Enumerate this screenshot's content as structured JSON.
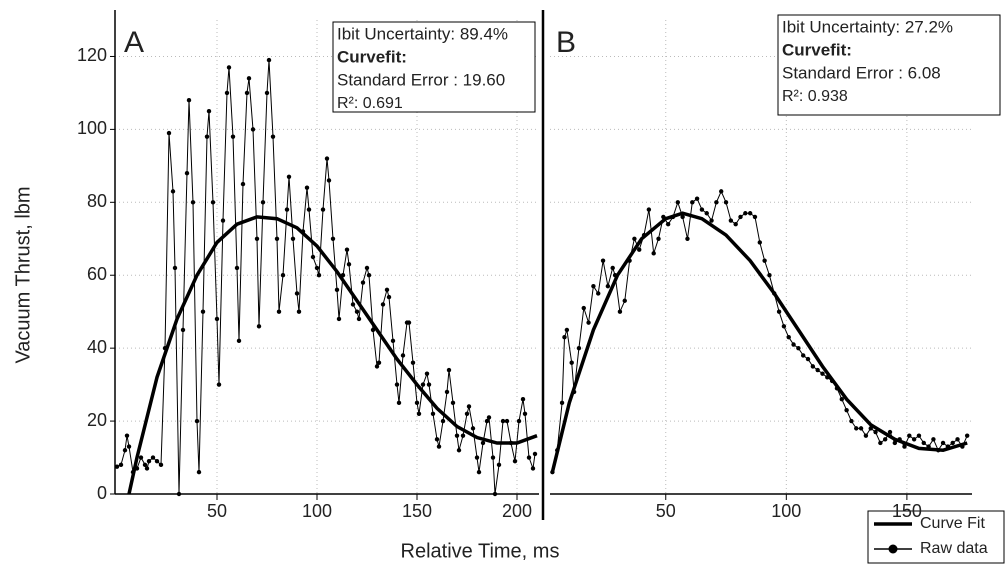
{
  "chart_data": [
    {
      "type": "line",
      "panel_label": "A",
      "y_label": "Vacuum Thrust, lbm",
      "x_label": "Relative Time, ms",
      "annotations": [
        "Ibit Uncertainty: 89.4%",
        "Curvefit:",
        "Standard Error : 19.60",
        "R²: 0.691"
      ],
      "xlim": [
        -1,
        211
      ],
      "xticks": [
        50,
        100,
        150,
        200
      ],
      "ylim": [
        0,
        130
      ],
      "yticks": [
        0,
        20,
        40,
        60,
        80,
        100,
        120
      ],
      "grid": true,
      "series": [
        {
          "color": "#000000",
          "marker": "circle",
          "x": [
            0,
            2,
            4,
            5,
            6,
            8,
            10,
            12,
            14,
            15,
            16,
            18,
            20,
            22,
            24,
            26,
            28,
            29,
            31,
            33,
            35,
            36,
            38,
            40,
            41,
            43,
            45,
            46,
            48,
            50,
            51,
            53,
            55,
            56,
            58,
            60,
            61,
            63,
            65,
            66,
            68,
            70,
            71,
            73,
            75,
            76,
            78,
            80,
            81,
            83,
            85,
            86,
            88,
            90,
            91,
            93,
            95,
            96,
            98,
            100,
            101,
            103,
            105,
            106,
            108,
            110,
            111,
            113,
            115,
            116,
            118,
            120,
            121,
            123,
            125,
            126,
            128,
            130,
            131,
            133,
            135,
            136,
            138,
            140,
            141,
            143,
            145,
            146,
            148,
            150,
            151,
            153,
            155,
            156,
            158,
            160,
            161,
            163,
            165,
            166,
            168,
            170,
            171,
            173,
            175,
            176,
            178,
            180,
            181,
            183,
            185,
            186,
            188,
            189,
            191,
            193,
            195,
            197,
            199,
            201,
            203,
            204,
            206,
            208,
            209
          ],
          "values": [
            7.5,
            8,
            12,
            16,
            13,
            6,
            7,
            10,
            8,
            7,
            9,
            10,
            9,
            8,
            40,
            99,
            83,
            62,
            0,
            45,
            88,
            108,
            80,
            20,
            6,
            50,
            98,
            105,
            80,
            48,
            30,
            75,
            110,
            117,
            98,
            62,
            42,
            85,
            110,
            114,
            100,
            70,
            46,
            80,
            110,
            119,
            98,
            70,
            50,
            60,
            78,
            87,
            70,
            55,
            50,
            72,
            84,
            78,
            65,
            62,
            60,
            78,
            92,
            86,
            70,
            56,
            48,
            60,
            67,
            63,
            52,
            50,
            48,
            58,
            62,
            60,
            45,
            35,
            36,
            52,
            56,
            54,
            42,
            30,
            25,
            38,
            47,
            47,
            36,
            25,
            22,
            30,
            33,
            30,
            22,
            15,
            13,
            20,
            28,
            34,
            25,
            16,
            12,
            16,
            22,
            24,
            18,
            10,
            6,
            14,
            20,
            21,
            10,
            0,
            8,
            20,
            20,
            14,
            9,
            20,
            26,
            22,
            10,
            7,
            11
          ]
        },
        {
          "color": "#000000",
          "x": [
            6,
            10,
            20,
            30,
            40,
            50,
            60,
            70,
            80,
            90,
            100,
            110,
            120,
            130,
            140,
            150,
            160,
            170,
            180,
            190,
            200,
            210
          ],
          "values": [
            0,
            10,
            32,
            48,
            60,
            69,
            74,
            76,
            75.5,
            73,
            68,
            61,
            53,
            45,
            37,
            30,
            23.5,
            18.5,
            15.5,
            14,
            14,
            16
          ]
        }
      ]
    },
    {
      "type": "line",
      "panel_label": "B",
      "annotations": [
        "Ibit Uncertainty: 27.2%",
        "Curvefit:",
        "Standard Error : 6.08",
        "R²: 0.938"
      ],
      "xlim": [
        2,
        177
      ],
      "xticks": [
        50,
        100,
        150
      ],
      "ylim": [
        0,
        130
      ],
      "yticks": [
        0,
        20,
        40,
        60,
        80,
        100,
        120
      ],
      "grid": true,
      "legend": "bottom-right",
      "series": [
        {
          "name": "Raw data",
          "color": "#000000",
          "marker": "circle",
          "x": [
            3,
            5,
            7,
            8,
            9,
            11,
            12,
            14,
            16,
            18,
            20,
            22,
            24,
            26,
            28,
            29,
            31,
            33,
            35,
            37,
            39,
            41,
            43,
            45,
            47,
            49,
            51,
            53,
            55,
            57,
            59,
            61,
            63,
            65,
            67,
            69,
            71,
            73,
            75,
            77,
            79,
            81,
            83,
            85,
            87,
            89,
            91,
            93,
            95,
            97,
            99,
            101,
            103,
            105,
            107,
            109,
            111,
            113,
            115,
            117,
            119,
            121,
            123,
            125,
            127,
            129,
            131,
            133,
            135,
            137,
            139,
            141,
            143,
            145,
            147,
            149,
            151,
            153,
            155,
            157,
            159,
            161,
            163,
            165,
            167,
            169,
            171,
            173,
            175
          ],
          "values": [
            6,
            12,
            25,
            43,
            45,
            36,
            28,
            40,
            51,
            47,
            57,
            55,
            64,
            57,
            62,
            60,
            50,
            53,
            64,
            70,
            67,
            71,
            78,
            66,
            70,
            76,
            74,
            76,
            80,
            76,
            70,
            80,
            81,
            78,
            77,
            75,
            80,
            83,
            80,
            75,
            74,
            76,
            77,
            77,
            76,
            69,
            64,
            60,
            55,
            50,
            46,
            43,
            41,
            40,
            38,
            37,
            35,
            34,
            33,
            32,
            31,
            29,
            26,
            23,
            20,
            18,
            18,
            16,
            18,
            17,
            14,
            15,
            17,
            14,
            15,
            13,
            16,
            15,
            16,
            14,
            13,
            15,
            12,
            14,
            13,
            14,
            15,
            13,
            16
          ]
        },
        {
          "name": "Curve Fit",
          "color": "#000000",
          "x": [
            3,
            10,
            20,
            30,
            40,
            50,
            57,
            65,
            75,
            85,
            95,
            105,
            115,
            125,
            135,
            145,
            155,
            165,
            175
          ],
          "values": [
            6,
            25,
            45,
            60,
            70,
            75.5,
            77,
            75.5,
            71,
            64,
            55,
            45,
            35,
            26,
            19,
            15,
            12.5,
            12,
            14
          ]
        }
      ]
    }
  ]
}
